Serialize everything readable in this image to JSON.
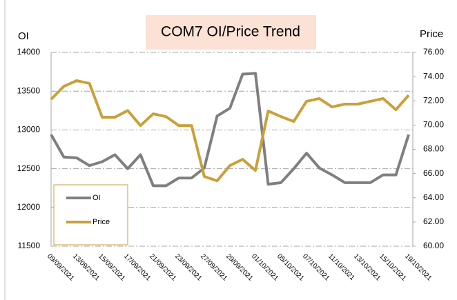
{
  "chart_data": {
    "type": "line",
    "title": "COM7 OI/Price Trend",
    "y_label": "OI",
    "y2_label": "Price",
    "categories": [
      "09/09/2021",
      null,
      "13/09/2021",
      null,
      "15/09/2021",
      null,
      "17/09/2021",
      null,
      "21/09/2021",
      null,
      "23/09/2021",
      null,
      "27/09/2021",
      null,
      "29/09/2021",
      null,
      "01/10/2021",
      null,
      "05/10/2021",
      null,
      "07/10/2021",
      null,
      "11/10/2021",
      null,
      "13/10/2021",
      null,
      "15/10/2021",
      null,
      "19/10/2021"
    ],
    "series": [
      {
        "name": "OI",
        "color": "#7f7f7f",
        "axis": "y",
        "values": [
          12940,
          12650,
          12640,
          12540,
          12590,
          12680,
          12500,
          12680,
          12280,
          12280,
          12380,
          12380,
          12510,
          13180,
          13280,
          13720,
          13730,
          12300,
          12320,
          12500,
          12700,
          12510,
          12420,
          12320,
          12320,
          12320,
          12420,
          12420,
          12940
        ]
      },
      {
        "name": "Price",
        "color": "#c9a03a",
        "axis": "y2",
        "values": [
          72.13,
          73.2,
          73.67,
          73.44,
          70.65,
          70.65,
          71.2,
          69.96,
          70.93,
          70.7,
          69.96,
          69.96,
          65.75,
          65.4,
          66.66,
          67.17,
          66.26,
          71.16,
          70.7,
          70.3,
          71.96,
          72.19,
          71.5,
          71.73,
          71.73,
          71.96,
          72.19,
          71.27,
          72.47
        ]
      }
    ],
    "ylim": [
      11500,
      14000
    ],
    "yticks": [
      11500,
      12000,
      12500,
      13000,
      13500,
      14000
    ],
    "y2lim": [
      60,
      76
    ],
    "y2ticks": [
      {
        "value": 60,
        "label": "60.00"
      },
      {
        "value": 62,
        "label": "62.00"
      },
      {
        "value": 64,
        "label": "64.00"
      },
      {
        "value": 66,
        "label": "66.00"
      },
      {
        "value": 68,
        "label": "68.00"
      },
      {
        "value": 70,
        "label": "70.00"
      },
      {
        "value": 72,
        "label": "72.00"
      },
      {
        "value": 74,
        "label": "74.00"
      },
      {
        "value": 76,
        "label": "76.00"
      }
    ],
    "grid": true,
    "legend": "lower-left"
  }
}
